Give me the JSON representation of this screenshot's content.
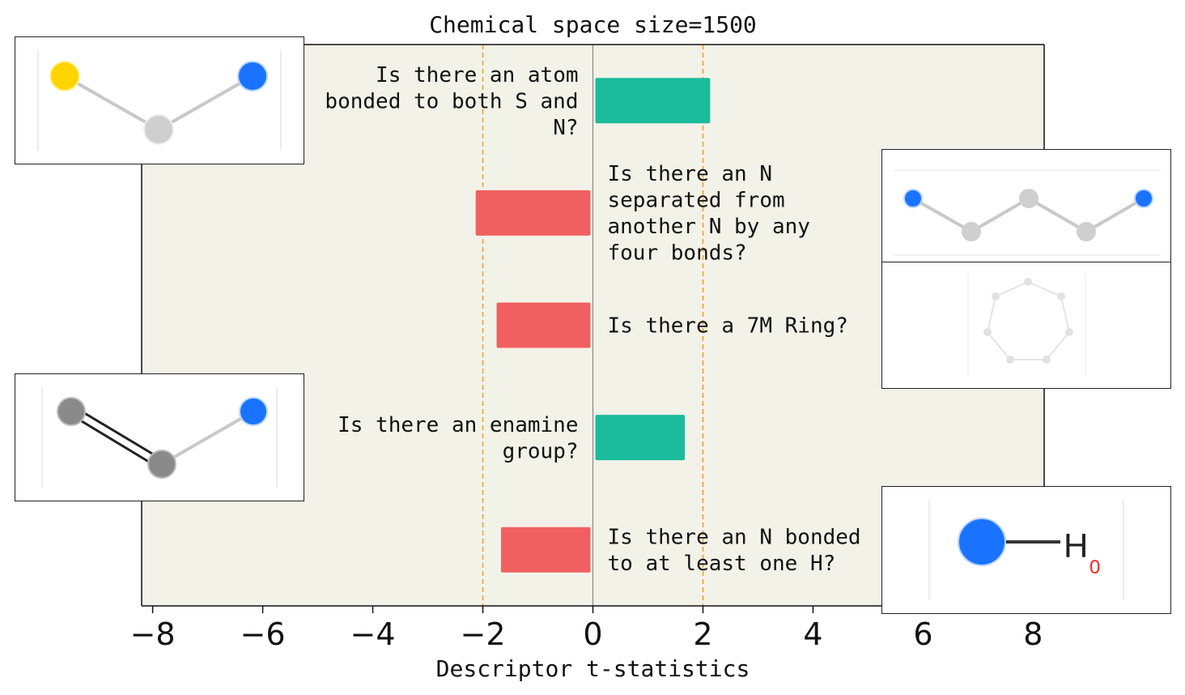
{
  "chart_data": {
    "type": "bar",
    "orientation": "horizontal",
    "title": "Chemical space size=1500",
    "xlabel": "Descriptor t-statistics",
    "ylabel": "",
    "xlim": [
      -8.2,
      8.2
    ],
    "xticks": [
      -8,
      -6,
      -4,
      -2,
      0,
      2,
      4,
      6,
      8
    ],
    "xtick_labels": [
      "−8",
      "−6",
      "−4",
      "−2",
      "0",
      "2",
      "4",
      "6",
      "8"
    ],
    "reference_lines": [
      -2,
      2
    ],
    "grid": false,
    "legend": "none",
    "colors": {
      "positive": "#1abc9c",
      "negative": "#f06060",
      "plot_background": "#f3f2e8",
      "reference_line": "#f0a030",
      "zero_line": "#888888"
    },
    "bars": [
      {
        "label": "Is there an atom bonded to both S and N?",
        "label_lines": [
          "Is there an atom",
          "bonded to both S and",
          "N?"
        ],
        "value": 2.13
      },
      {
        "label": "Is there an N separated from another N by any four bonds?",
        "label_lines": [
          "Is there an N",
          "separated from",
          "another N by any",
          "four bonds?"
        ],
        "value": -2.13
      },
      {
        "label": "Is there a 7M Ring?",
        "label_lines": [
          "Is there a 7M Ring?"
        ],
        "value": -1.75
      },
      {
        "label": "Is there an enamine group?",
        "label_lines": [
          "Is there an enamine",
          "group?"
        ],
        "value": 1.67
      },
      {
        "label": "Is there an N bonded to at least one H?",
        "label_lines": [
          "Is there an N bonded",
          "to at least one H?"
        ],
        "value": -1.67
      }
    ]
  },
  "insets": {
    "s_n_fragment": {
      "description_icon": "S-C-N fragment",
      "atoms": [
        "S",
        "C",
        "N"
      ]
    },
    "n_n_fragment": {
      "description_icon": "N-C-C-C-N fragment"
    },
    "ring7": {
      "description_icon": "7-membered ring"
    },
    "enamine": {
      "description_icon": "C=C-N fragment"
    },
    "nh": {
      "atom_label": "H",
      "subscript": "0"
    }
  }
}
